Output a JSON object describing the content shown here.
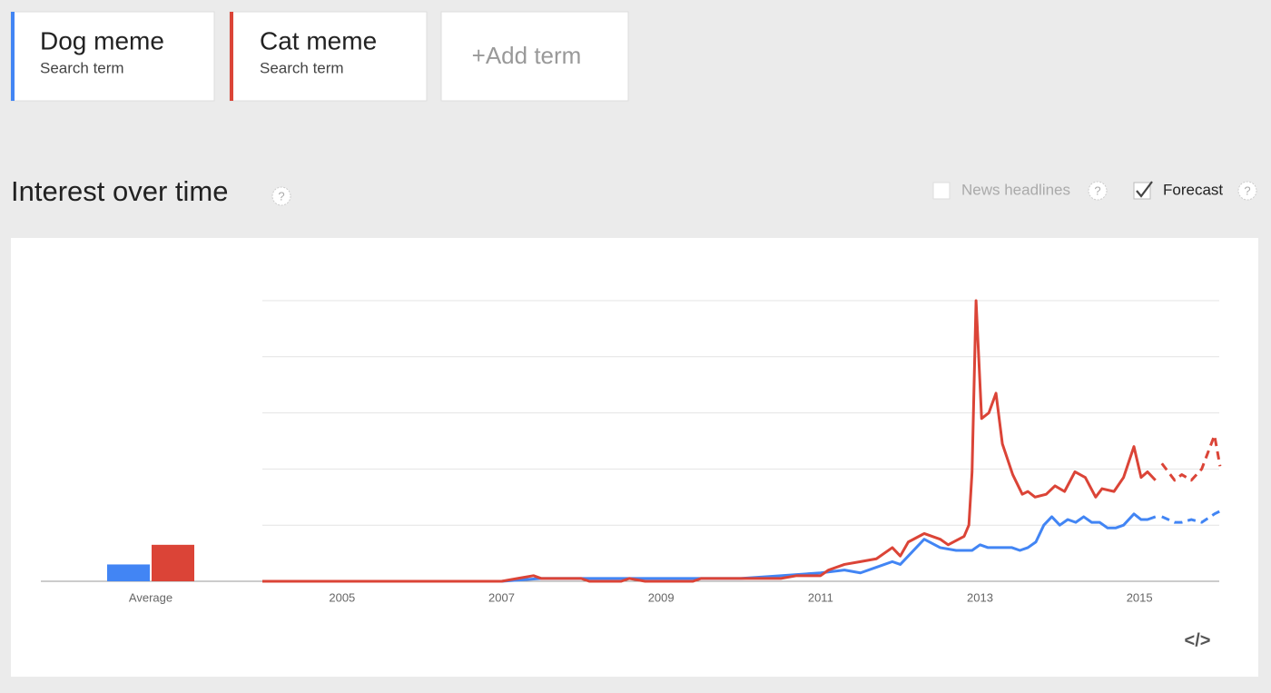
{
  "search_term_label": "Search term",
  "add_term": "+Add term",
  "section_title": "Interest over time",
  "help": "?",
  "options": [
    {
      "label": "News headlines",
      "checked": false
    },
    {
      "label": "Forecast",
      "checked": true
    }
  ],
  "embed_icon": "</>",
  "chart_data": {
    "type": "line",
    "xlim": [
      2004,
      2016
    ],
    "xticks": [
      2005,
      2007,
      2009,
      2011,
      2013,
      2015
    ],
    "ylim": [
      0,
      100
    ],
    "ygrid": [
      20,
      40,
      60,
      80,
      100
    ],
    "average_label": "Average",
    "series": [
      {
        "name": "Dog meme",
        "color": "#4285f4",
        "average": 6,
        "x": [
          2004,
          2007,
          2007.5,
          2008,
          2009,
          2010,
          2010.5,
          2011,
          2011.3,
          2011.5,
          2011.7,
          2011.9,
          2012,
          2012.1,
          2012.3,
          2012.5,
          2012.7,
          2012.9,
          2013,
          2013.1,
          2013.2,
          2013.4,
          2013.5,
          2013.6,
          2013.7,
          2013.8,
          2013.9,
          2014,
          2014.1,
          2014.2,
          2014.3,
          2014.4,
          2014.5,
          2014.6,
          2014.7,
          2014.8,
          2014.93,
          2015.02,
          2015.1,
          2015.2,
          2015.28,
          2015.44,
          2015.53,
          2015.65,
          2015.78,
          2015.94,
          2016.01
        ],
        "values": [
          0,
          0,
          1,
          1,
          1,
          1,
          2,
          3,
          4,
          3,
          5,
          7,
          6,
          9,
          15,
          12,
          11,
          11,
          13,
          12,
          12,
          12,
          11,
          12,
          14,
          20,
          23,
          20,
          22,
          21,
          23,
          21,
          21,
          19,
          19,
          20,
          24,
          22,
          22,
          23,
          null,
          null,
          null,
          null,
          null,
          null,
          null
        ],
        "forecast_values": [
          null,
          null,
          null,
          null,
          null,
          null,
          null,
          null,
          null,
          null,
          null,
          null,
          null,
          null,
          null,
          null,
          null,
          null,
          null,
          null,
          null,
          null,
          null,
          null,
          null,
          null,
          null,
          null,
          null,
          null,
          null,
          null,
          null,
          null,
          null,
          null,
          null,
          null,
          null,
          null,
          23,
          21,
          21,
          22,
          21,
          24,
          25
        ]
      },
      {
        "name": "Cat meme",
        "color": "#db4437",
        "average": 13,
        "x": [
          2004,
          2007,
          2007.2,
          2007.4,
          2007.5,
          2008,
          2008.1,
          2008.5,
          2008.6,
          2008.8,
          2009.4,
          2009.5,
          2010,
          2010.5,
          2010.7,
          2011,
          2011.1,
          2011.3,
          2011.5,
          2011.7,
          2011.9,
          2012,
          2012.1,
          2012.3,
          2012.5,
          2012.6,
          2012.8,
          2012.86,
          2012.9,
          2012.95,
          2013.02,
          2013.11,
          2013.2,
          2013.28,
          2013.41,
          2013.53,
          2013.6,
          2013.69,
          2013.83,
          2013.94,
          2014.06,
          2014.19,
          2014.32,
          2014.45,
          2014.53,
          2014.68,
          2014.8,
          2014.93,
          2015.02,
          2015.1,
          2015.2,
          2015.28,
          2015.44,
          2015.53,
          2015.65,
          2015.78,
          2015.94,
          2016.01
        ],
        "values": [
          0,
          0,
          1,
          2,
          1,
          1,
          0,
          0,
          1,
          0,
          0,
          1,
          1,
          1,
          2,
          2,
          4,
          6,
          7,
          8,
          12,
          9,
          14,
          17,
          15,
          13,
          16,
          20,
          39,
          100,
          58,
          60,
          67,
          49,
          38,
          31,
          32,
          30,
          31,
          34,
          32,
          39,
          37,
          30,
          33,
          32,
          37,
          48,
          37,
          39,
          36,
          null,
          null,
          null,
          null,
          null,
          null,
          null
        ],
        "forecast_values": [
          null,
          null,
          null,
          null,
          null,
          null,
          null,
          null,
          null,
          null,
          null,
          null,
          null,
          null,
          null,
          null,
          null,
          null,
          null,
          null,
          null,
          null,
          null,
          null,
          null,
          null,
          null,
          null,
          null,
          null,
          null,
          null,
          null,
          null,
          null,
          null,
          null,
          null,
          null,
          null,
          null,
          null,
          null,
          null,
          null,
          null,
          null,
          null,
          null,
          null,
          null,
          42,
          36,
          38,
          36,
          40,
          52,
          41
        ]
      }
    ]
  }
}
